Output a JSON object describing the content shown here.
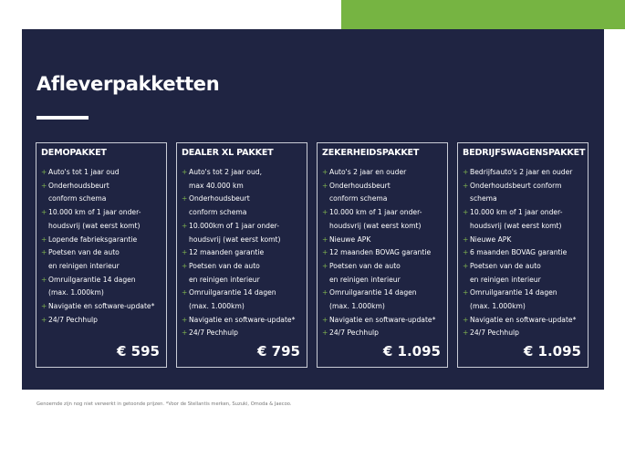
{
  "title": "Afleverpakketten",
  "colors": {
    "panel": "#1f2442",
    "accent": "#76b442"
  },
  "packages": [
    {
      "name": "DEMOPAKKET",
      "price": "€ 595",
      "items": [
        "Auto's tot 1 jaar oud",
        "Onderhoudsbeurt\nconform schema",
        "10.000 km of 1 jaar onder-\nhoudsvrij (wat eerst komt)",
        "Lopende fabrieksgarantie",
        "Poetsen van de auto\nen reinigen interieur",
        "Omruilgarantie 14 dagen\n(max. 1.000km)",
        "Navigatie en software-update*",
        "24/7 Pechhulp"
      ]
    },
    {
      "name": "DEALER XL PAKKET",
      "price": "€ 795",
      "items": [
        "Auto's tot 2 jaar oud,\nmax 40.000 km",
        "Onderhoudsbeurt\nconform schema",
        "10.000km of 1 jaar onder-\nhoudsvrij (wat eerst komt)",
        "12 maanden garantie",
        "Poetsen van de auto\nen reinigen interieur",
        "Omruilgarantie 14 dagen\n(max. 1.000km)",
        "Navigatie en software-update*",
        "24/7 Pechhulp"
      ]
    },
    {
      "name": "ZEKERHEIDSPAKKET",
      "price": "€ 1.095",
      "items": [
        "Auto's 2 jaar en ouder",
        "Onderhoudsbeurt\nconform schema",
        "10.000 km of 1 jaar onder-\nhoudsvrij (wat eerst komt)",
        "Nieuwe APK",
        "12 maanden BOVAG garantie",
        "Poetsen van de auto\nen reinigen interieur",
        "Omruilgarantie 14 dagen\n(max. 1.000km)",
        "Navigatie en software-update*",
        "24/7 Pechhulp"
      ]
    },
    {
      "name": "BEDRIJFSWAGENSPAKKET",
      "price": "€ 1.095",
      "items": [
        "Bedrijfsauto's 2 jaar en ouder",
        "Onderhoudsbeurt conform\nschema",
        "10.000 km of 1 jaar onder-\nhoudsvrij (wat eerst komt)",
        "Nieuwe APK",
        "6 maanden BOVAG garantie",
        "Poetsen van de auto\nen reinigen interieur",
        "Omruilgarantie 14 dagen\n(max. 1.000km)",
        "Navigatie en software-update*",
        "24/7 Pechhulp"
      ]
    }
  ],
  "bullet": "+",
  "footnote": "Genoemde zijn nog niet verwerkt in getoonde prijzen. *Voor de Stellantis merken, Suzuki, Omoda & Jaecoo."
}
